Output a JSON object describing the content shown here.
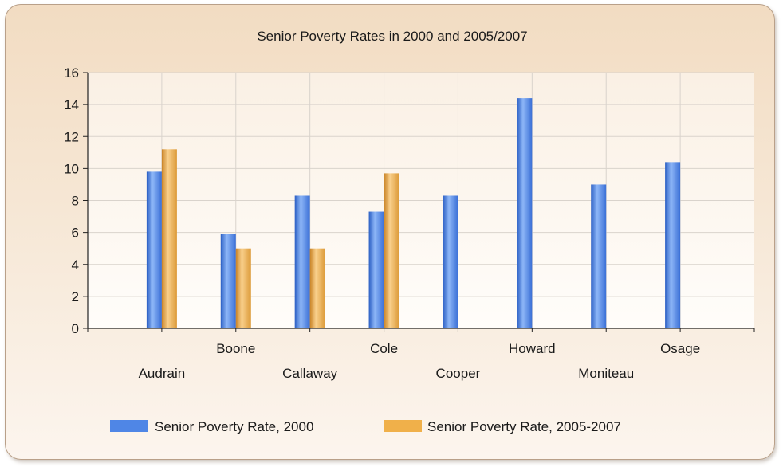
{
  "chart_data": {
    "type": "bar",
    "title": "Senior Poverty Rates in 2000 and 2005/2007",
    "xlabel": "",
    "ylabel": "",
    "categories": [
      "Audrain",
      "Boone",
      "Callaway",
      "Cole",
      "Cooper",
      "Howard",
      "Moniteau",
      "Osage"
    ],
    "series": [
      {
        "name": "Senior Poverty Rate, 2000",
        "values": [
          9.8,
          5.9,
          8.3,
          7.3,
          8.3,
          14.4,
          9.0,
          10.4
        ],
        "color": "#4f86e6"
      },
      {
        "name": "Senior Poverty Rate, 2005-2007",
        "values": [
          11.2,
          5.0,
          5.0,
          9.7,
          null,
          null,
          null,
          null
        ],
        "color": "#f0b04a"
      }
    ],
    "ylim": [
      0,
      16
    ],
    "yticks": [
      0,
      2,
      4,
      6,
      8,
      10,
      12,
      14,
      16
    ],
    "grid": true,
    "legend_position": "bottom"
  }
}
